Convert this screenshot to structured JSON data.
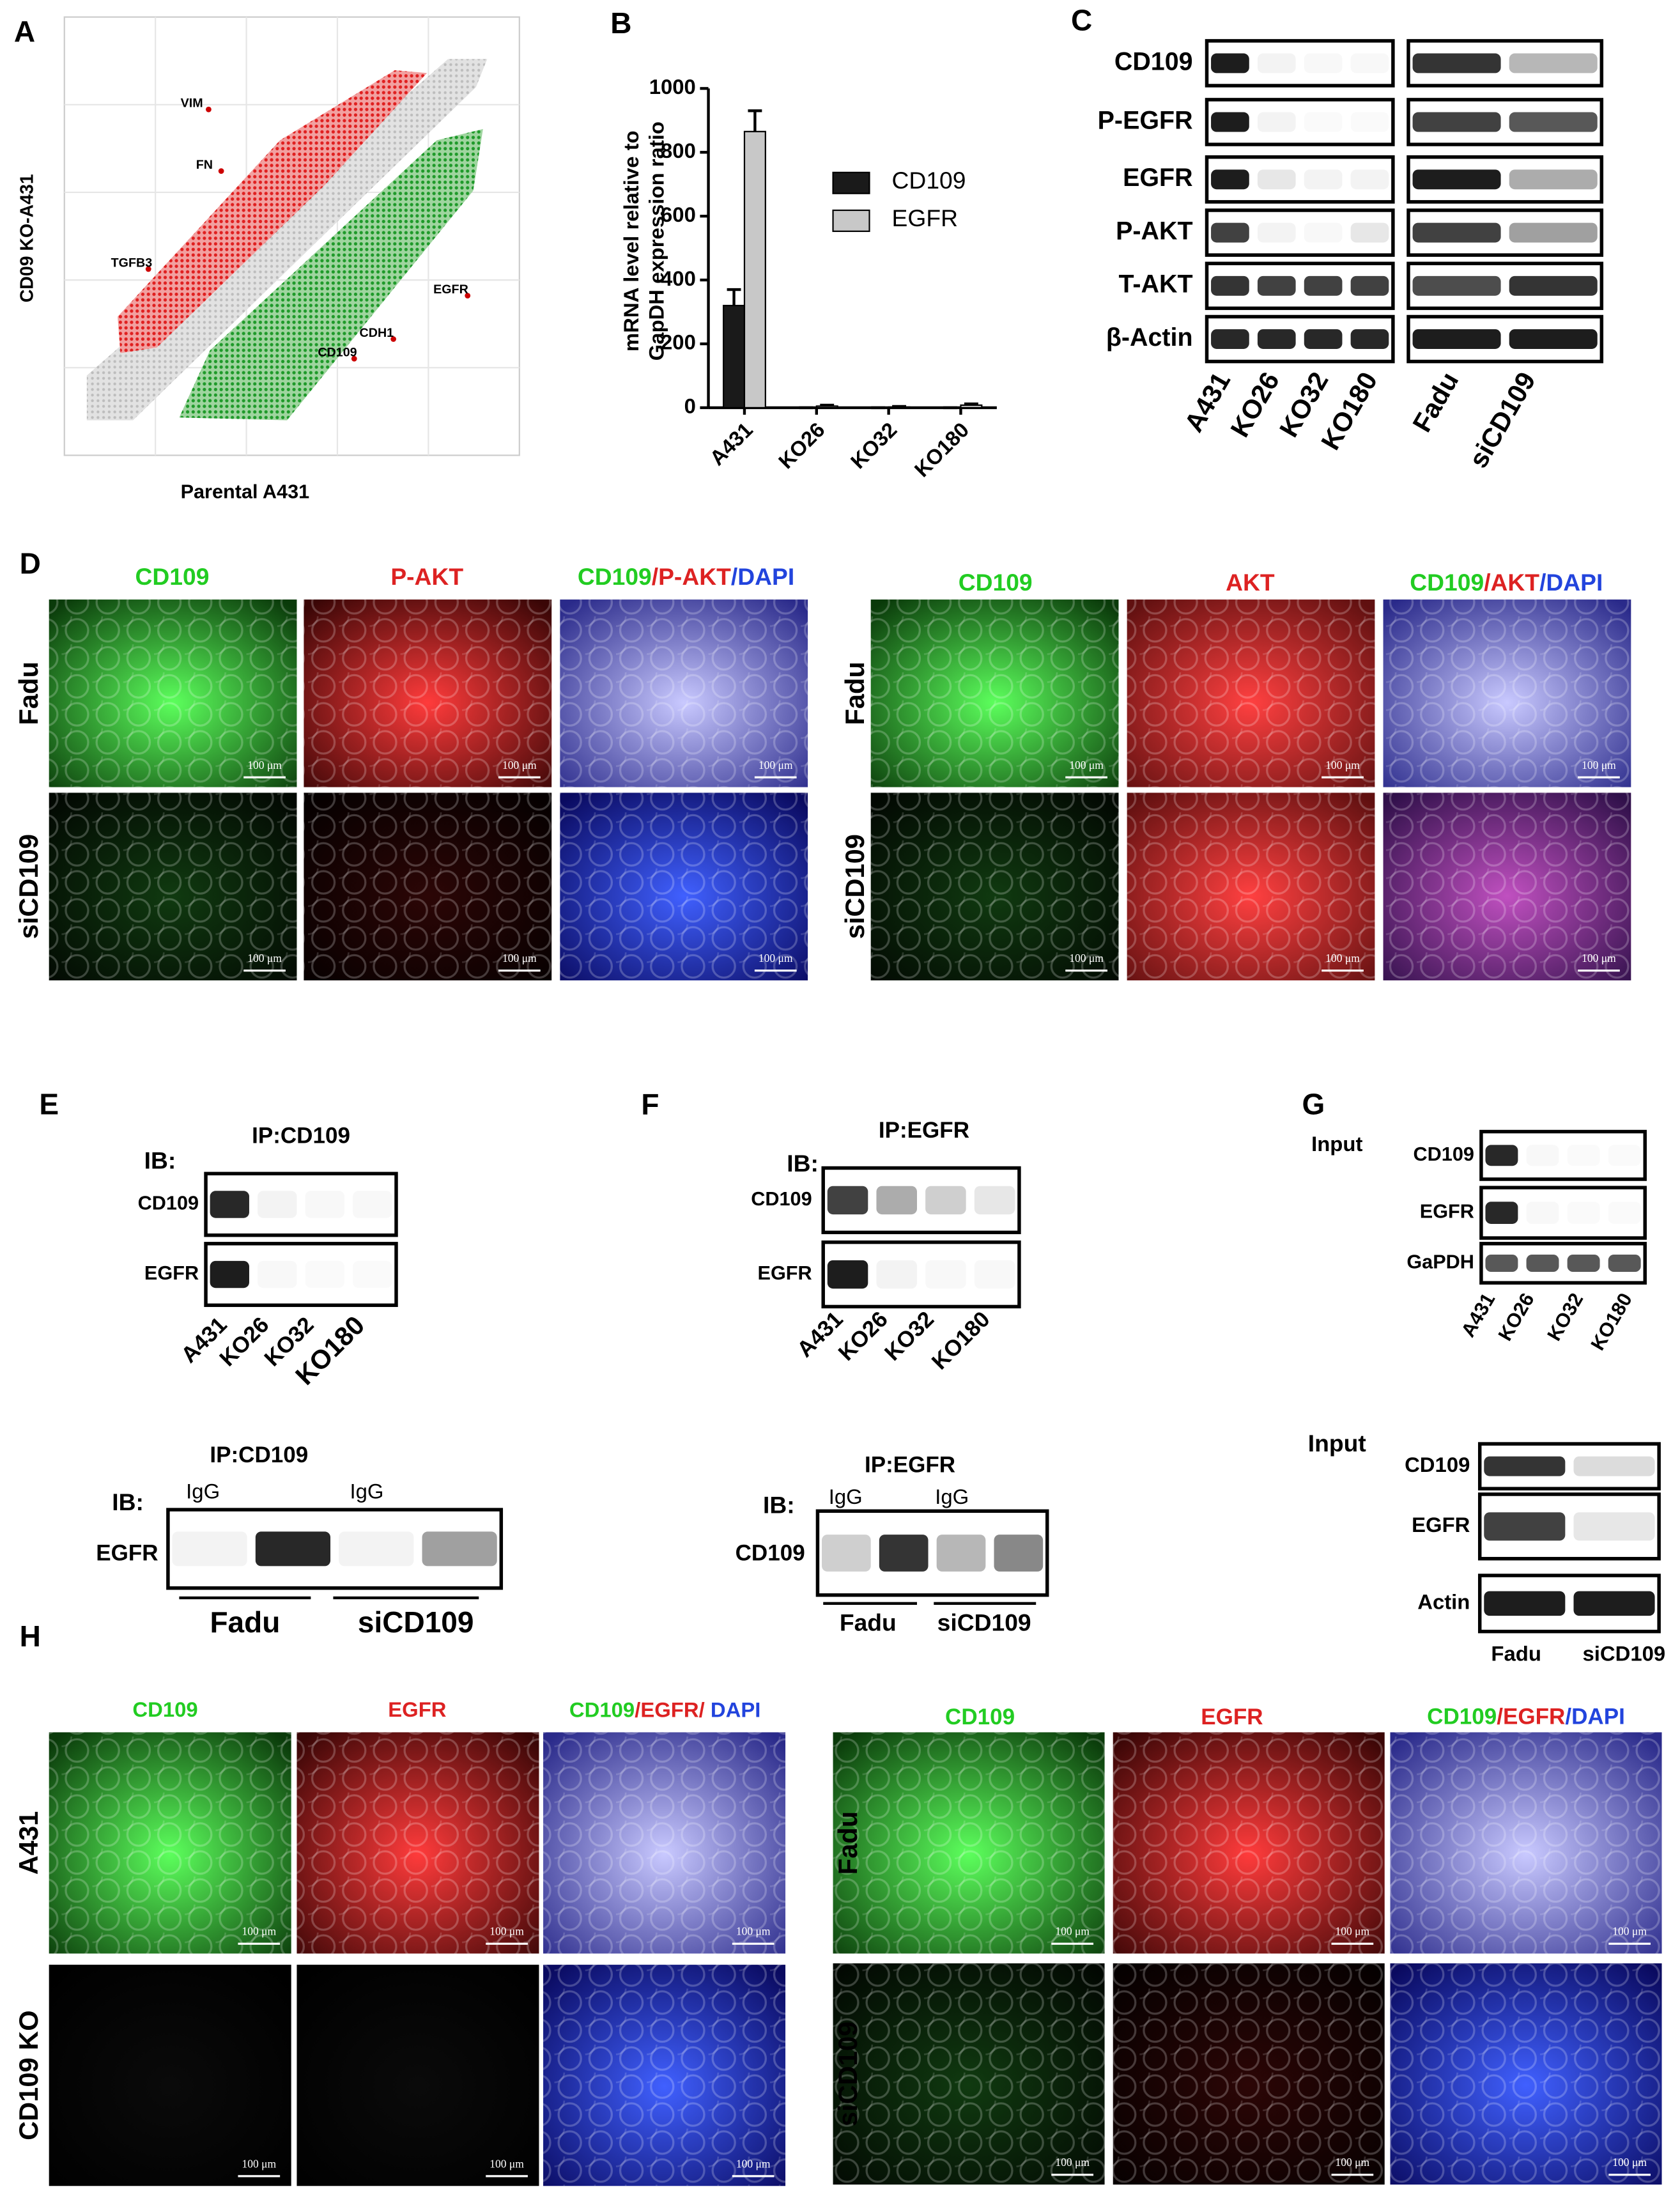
{
  "panel_a": {
    "label": "A",
    "x_label": "Parental A431",
    "y_label": "CD09 KO-A431",
    "genes": [
      "VIM",
      "FN",
      "TGFB3",
      "EGFR",
      "CDH1",
      "CD109"
    ]
  },
  "chart_data": {
    "type": "bar",
    "panel_label": "B",
    "ylabel": [
      "mRNA level relative to",
      "GapDH expression ratio"
    ],
    "categories": [
      "A431",
      "KO26",
      "KO32",
      "KO180"
    ],
    "series": [
      {
        "name": "CD109",
        "color": "#1a1a1a",
        "values": [
          320,
          0,
          0,
          0
        ],
        "errors": [
          50,
          0,
          0,
          0
        ]
      },
      {
        "name": "EGFR",
        "color": "#c8c8c8",
        "values": [
          865,
          5,
          2,
          8
        ],
        "errors": [
          65,
          3,
          2,
          4
        ]
      }
    ],
    "ylim": [
      0,
      1000
    ],
    "yticks": [
      0,
      200,
      400,
      600,
      800,
      1000
    ]
  },
  "panel_c": {
    "label": "C",
    "rows": [
      "CD109",
      "P-EGFR",
      "EGFR",
      "P-AKT",
      "T-AKT",
      "β-Actin"
    ],
    "lanes": [
      "A431",
      "KO26",
      "KO32",
      "KO180"
    ],
    "lanes_right": [
      "Fadu",
      "siCD109"
    ]
  },
  "panel_d": {
    "label": "D",
    "scale_bar": "100 μm",
    "left": {
      "headers": [
        "CD109",
        "P-AKT"
      ],
      "merged": [
        "CD109",
        "/P-AKT",
        "/DAPI"
      ],
      "rows": [
        "Fadu",
        "siCD109"
      ]
    },
    "right": {
      "headers": [
        "CD109",
        "AKT"
      ],
      "merged": [
        "CD109",
        "/AKT",
        "/DAPI"
      ],
      "rows": [
        "Fadu",
        "siCD109"
      ]
    }
  },
  "panel_e": {
    "label": "E",
    "top": {
      "ip": "IP:CD109",
      "ib": "IB:",
      "rows": [
        "CD109",
        "EGFR"
      ],
      "lanes": [
        "A431",
        "KO26",
        "KO32",
        "KO180"
      ]
    },
    "bottom": {
      "ip": "IP:CD109",
      "ib": "IB:",
      "igg": [
        "IgG",
        "IgG"
      ],
      "row": "EGFR",
      "groups": [
        "Fadu",
        "siCD109"
      ]
    }
  },
  "panel_f": {
    "label": "F",
    "top": {
      "ip": "IP:EGFR",
      "ib": "IB:",
      "rows": [
        "CD109",
        "EGFR"
      ],
      "lanes": [
        "A431",
        "KO26",
        "KO32",
        "KO180"
      ]
    },
    "bottom": {
      "ip": "IP:EGFR",
      "ib": "IB:",
      "igg": [
        "IgG",
        "IgG"
      ],
      "row": "CD109",
      "groups": [
        "Fadu",
        "siCD109"
      ]
    }
  },
  "panel_g": {
    "label": "G",
    "top": {
      "title": "Input",
      "rows": [
        "CD109",
        "EGFR",
        "GaPDH"
      ],
      "lanes": [
        "A431",
        "KO26",
        "KO32",
        "KO180"
      ]
    },
    "bottom": {
      "title": "Input",
      "rows": [
        "CD109",
        "EGFR",
        "Actin"
      ],
      "lanes": [
        "Fadu",
        "siCD109"
      ]
    }
  },
  "panel_h": {
    "label": "H",
    "scale_bar": "100 μm",
    "left": {
      "headers": [
        "CD109",
        "EGFR"
      ],
      "merged": [
        "CD109",
        "/EGFR/",
        " DAPI"
      ],
      "rows": [
        "A431",
        "CD109 KO"
      ]
    },
    "right": {
      "headers": [
        "CD109",
        "EGFR"
      ],
      "merged": [
        "CD109",
        "/EGFR",
        "/DAPI"
      ],
      "rows": [
        "Fadu",
        "siCD109"
      ]
    }
  }
}
